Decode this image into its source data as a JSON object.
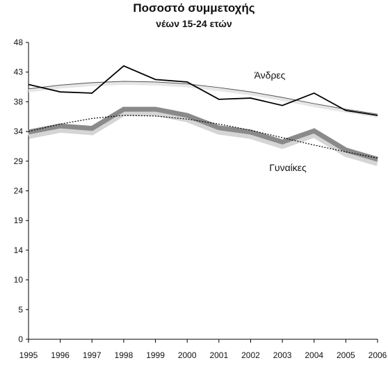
{
  "chart_data": {
    "type": "line",
    "title": "Ποσοστό συμμετοχής",
    "subtitle": "νέων 15-24 ετών",
    "xlabel": "",
    "ylabel": "",
    "x": [
      "1995",
      "1996",
      "1997",
      "1998",
      "1999",
      "2000",
      "2001",
      "2002",
      "2003",
      "2004",
      "2005",
      "2006"
    ],
    "yticks": [
      "0",
      "5",
      "10",
      "14",
      "19",
      "24",
      "29",
      "34",
      "38",
      "43",
      "48"
    ],
    "ylim": [
      0,
      48
    ],
    "grid": false,
    "series": [
      {
        "name": "Άνδρες",
        "values": [
          41.2,
          40.0,
          39.8,
          44.2,
          42.0,
          41.6,
          38.8,
          39.0,
          37.8,
          39.8,
          37.0,
          36.2
        ],
        "trend": [
          40.5,
          41.1,
          41.5,
          41.7,
          41.6,
          41.3,
          40.7,
          40.0,
          39.1,
          38.1,
          37.2,
          36.4
        ],
        "color": "#000000"
      },
      {
        "name": "Γυναίκες",
        "values": [
          33.5,
          34.5,
          34.1,
          37.2,
          37.2,
          36.2,
          34.2,
          33.5,
          31.9,
          33.7,
          30.6,
          29.1
        ],
        "trend": [
          33.6,
          34.8,
          35.7,
          36.2,
          36.1,
          35.6,
          34.8,
          33.8,
          32.6,
          31.4,
          30.3,
          29.3
        ],
        "color": "#8a8a8a"
      }
    ]
  }
}
